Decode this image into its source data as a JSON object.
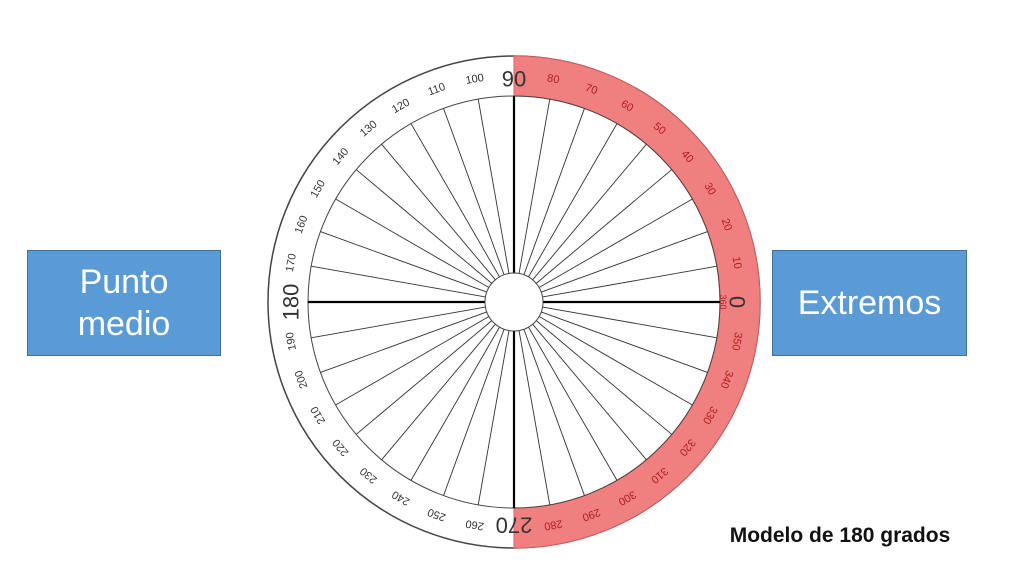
{
  "left_box": {
    "line1": "Punto",
    "line2": "medio"
  },
  "right_box": {
    "label": "Extremos"
  },
  "caption": "Modelo de 180 grados",
  "protractor": {
    "highlight_range": [
      -90,
      90
    ],
    "ticks": [
      0,
      10,
      20,
      30,
      40,
      50,
      60,
      70,
      80,
      90,
      100,
      110,
      120,
      130,
      140,
      150,
      160,
      170,
      180,
      190,
      200,
      210,
      220,
      230,
      240,
      250,
      260,
      270,
      280,
      290,
      300,
      310,
      320,
      330,
      340,
      350
    ],
    "tick_labels": [
      "360",
      "10",
      "20",
      "30",
      "40",
      "50",
      "60",
      "70",
      "80",
      "90",
      "100",
      "110",
      "120",
      "130",
      "140",
      "150",
      "160",
      "170",
      "180",
      "190",
      "200",
      "210",
      "220",
      "230",
      "240",
      "250",
      "260",
      "270",
      "280",
      "290",
      "300",
      "310",
      "320",
      "330",
      "340",
      "350"
    ],
    "zero_label": "0",
    "major_labels": [
      "0",
      "90",
      "180",
      "270"
    ],
    "colors": {
      "highlight": "#f08080",
      "highlight_border": "#e06060",
      "lines": "#333333",
      "outline": "#444444",
      "text": "#333333",
      "highlight_text": "#b01c1c"
    }
  }
}
